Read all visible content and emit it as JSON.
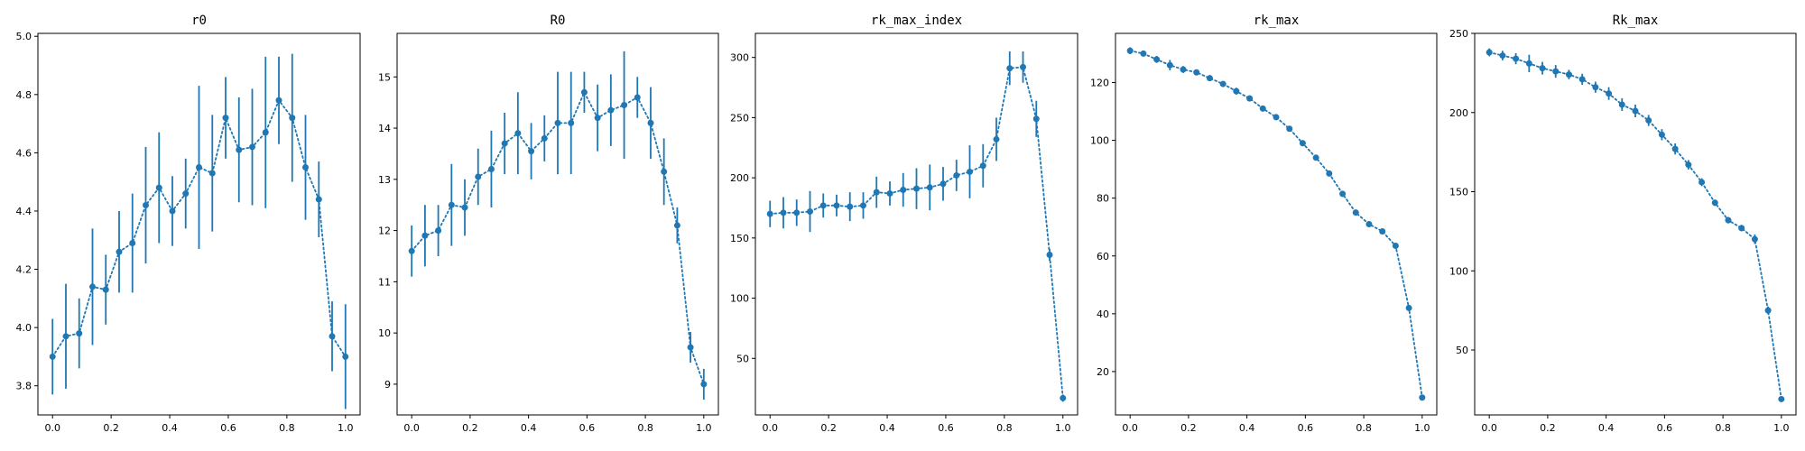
{
  "figure": {
    "background": "#ffffff",
    "series_color": "#1f77b4"
  },
  "chart_data": [
    {
      "type": "line",
      "title": "r0",
      "xlabel": "",
      "ylabel": "",
      "x": [
        0,
        0.0455,
        0.0909,
        0.1364,
        0.1818,
        0.2273,
        0.2727,
        0.3182,
        0.3636,
        0.4091,
        0.4545,
        0.5,
        0.5455,
        0.5909,
        0.6364,
        0.6818,
        0.7273,
        0.7727,
        0.8182,
        0.8636,
        0.9091,
        0.9545,
        1.0
      ],
      "values": [
        3.9,
        3.97,
        3.98,
        4.14,
        4.13,
        4.26,
        4.29,
        4.42,
        4.48,
        4.4,
        4.46,
        4.55,
        4.53,
        4.72,
        4.61,
        4.62,
        4.67,
        4.78,
        4.72,
        4.55,
        4.44,
        3.97,
        3.9
      ],
      "errors": [
        0.13,
        0.18,
        0.12,
        0.2,
        0.12,
        0.14,
        0.17,
        0.2,
        0.19,
        0.12,
        0.12,
        0.28,
        0.2,
        0.14,
        0.18,
        0.2,
        0.26,
        0.15,
        0.22,
        0.18,
        0.13,
        0.12,
        0.18
      ],
      "xlim": [
        -0.05,
        1.05
      ],
      "ylim": [
        3.7,
        5.01
      ],
      "xticks": [
        0.0,
        0.2,
        0.4,
        0.6,
        0.8,
        1.0
      ],
      "xtick_labels": [
        "0.0",
        "0.2",
        "0.4",
        "0.6",
        "0.8",
        "1.0"
      ],
      "yticks": [
        3.8,
        4.0,
        4.2,
        4.4,
        4.6,
        4.8,
        5.0
      ],
      "ytick_labels": [
        "3.8",
        "4.0",
        "4.2",
        "4.4",
        "4.6",
        "4.8",
        "5.0"
      ],
      "line_style": "dotted",
      "grid": false
    },
    {
      "type": "line",
      "title": "R0",
      "xlabel": "",
      "ylabel": "",
      "x": [
        0,
        0.0455,
        0.0909,
        0.1364,
        0.1818,
        0.2273,
        0.2727,
        0.3182,
        0.3636,
        0.4091,
        0.4545,
        0.5,
        0.5455,
        0.5909,
        0.6364,
        0.6818,
        0.7273,
        0.7727,
        0.8182,
        0.8636,
        0.9091,
        0.9545,
        1.0
      ],
      "values": [
        11.6,
        11.9,
        12.0,
        12.5,
        12.45,
        13.05,
        13.2,
        13.7,
        13.9,
        13.55,
        13.8,
        14.1,
        14.1,
        14.7,
        14.2,
        14.35,
        14.45,
        14.6,
        14.1,
        13.15,
        12.1,
        9.72,
        9.0
      ],
      "errors": [
        0.5,
        0.6,
        0.5,
        0.8,
        0.55,
        0.55,
        0.75,
        0.6,
        0.8,
        0.55,
        0.45,
        1.0,
        1.0,
        0.4,
        0.65,
        0.7,
        1.05,
        0.4,
        0.7,
        0.65,
        0.35,
        0.3,
        0.3
      ],
      "xlim": [
        -0.05,
        1.05
      ],
      "ylim": [
        8.4,
        15.85
      ],
      "xticks": [
        0.0,
        0.2,
        0.4,
        0.6,
        0.8,
        1.0
      ],
      "xtick_labels": [
        "0.0",
        "0.2",
        "0.4",
        "0.6",
        "0.8",
        "1.0"
      ],
      "yticks": [
        9,
        10,
        11,
        12,
        13,
        14,
        15
      ],
      "ytick_labels": [
        "9",
        "10",
        "11",
        "12",
        "13",
        "14",
        "15"
      ],
      "line_style": "dotted",
      "grid": false
    },
    {
      "type": "line",
      "title": "rk_max_index",
      "xlabel": "",
      "ylabel": "",
      "x": [
        0,
        0.0455,
        0.0909,
        0.1364,
        0.1818,
        0.2273,
        0.2727,
        0.3182,
        0.3636,
        0.4091,
        0.4545,
        0.5,
        0.5455,
        0.5909,
        0.6364,
        0.6818,
        0.7273,
        0.7727,
        0.8182,
        0.8636,
        0.9091,
        0.9545,
        1.0
      ],
      "values": [
        170,
        171,
        171,
        172,
        177,
        177,
        176,
        177,
        188,
        187,
        190,
        191,
        192,
        195,
        202,
        205,
        210,
        232,
        291,
        292,
        249,
        136,
        17
      ],
      "errors": [
        11,
        13,
        11,
        17,
        10,
        9,
        12,
        11,
        13,
        10,
        14,
        17,
        19,
        14,
        13,
        22,
        18,
        18,
        14,
        13,
        15,
        5,
        3
      ],
      "xlim": [
        -0.05,
        1.05
      ],
      "ylim": [
        3,
        320
      ],
      "xticks": [
        0.0,
        0.2,
        0.4,
        0.6,
        0.8,
        1.0
      ],
      "xtick_labels": [
        "0.0",
        "0.2",
        "0.4",
        "0.6",
        "0.8",
        "1.0"
      ],
      "yticks": [
        50,
        100,
        150,
        200,
        250,
        300
      ],
      "ytick_labels": [
        "50",
        "100",
        "150",
        "200",
        "250",
        "300"
      ],
      "line_style": "dotted",
      "grid": false
    },
    {
      "type": "line",
      "title": "rk_max",
      "xlabel": "",
      "ylabel": "",
      "x": [
        0,
        0.0455,
        0.0909,
        0.1364,
        0.1818,
        0.2273,
        0.2727,
        0.3182,
        0.3636,
        0.4091,
        0.4545,
        0.5,
        0.5455,
        0.5909,
        0.6364,
        0.6818,
        0.7273,
        0.7727,
        0.8182,
        0.8636,
        0.9091,
        0.9545,
        1.0
      ],
      "values": [
        131,
        130,
        128,
        126,
        124.5,
        123.5,
        121.5,
        119.5,
        117,
        114.5,
        111,
        108,
        104,
        99,
        94,
        88.5,
        81.5,
        75,
        71,
        68.5,
        63.5,
        42,
        11
      ],
      "errors": [
        1.2,
        1.0,
        1.2,
        1.8,
        1.2,
        1.0,
        1.0,
        1.0,
        1.2,
        1.0,
        1.0,
        1.0,
        1.0,
        0.8,
        1.0,
        0.8,
        1.0,
        0.8,
        0.8,
        0.8,
        0.8,
        0.8,
        0.5
      ],
      "xlim": [
        -0.05,
        1.05
      ],
      "ylim": [
        5,
        137
      ],
      "xticks": [
        0.0,
        0.2,
        0.4,
        0.6,
        0.8,
        1.0
      ],
      "xtick_labels": [
        "0.0",
        "0.2",
        "0.4",
        "0.6",
        "0.8",
        "1.0"
      ],
      "yticks": [
        20,
        40,
        60,
        80,
        100,
        120
      ],
      "ytick_labels": [
        "20",
        "40",
        "60",
        "80",
        "100",
        "120"
      ],
      "line_style": "dotted",
      "grid": false
    },
    {
      "type": "line",
      "title": "Rk_max",
      "xlabel": "",
      "ylabel": "",
      "x": [
        0,
        0.0455,
        0.0909,
        0.1364,
        0.1818,
        0.2273,
        0.2727,
        0.3182,
        0.3636,
        0.4091,
        0.4545,
        0.5,
        0.5455,
        0.5909,
        0.6364,
        0.6818,
        0.7273,
        0.7727,
        0.8182,
        0.8636,
        0.9091,
        0.9545,
        1.0
      ],
      "values": [
        238,
        236,
        234,
        231,
        228,
        226,
        224,
        221,
        216,
        212,
        205,
        201,
        195,
        186,
        177,
        167,
        156,
        143,
        132,
        127,
        120,
        75,
        19
      ],
      "errors": [
        2.5,
        3.0,
        3.5,
        5.5,
        4.0,
        4.0,
        3.0,
        3.5,
        3.5,
        4.0,
        4.0,
        4.0,
        3.5,
        3.5,
        3.5,
        3.0,
        2.5,
        2.0,
        2.0,
        2.0,
        3.0,
        2.5,
        1.5
      ],
      "xlim": [
        -0.05,
        1.05
      ],
      "ylim": [
        9,
        250
      ],
      "xticks": [
        0.0,
        0.2,
        0.4,
        0.6,
        0.8,
        1.0
      ],
      "xtick_labels": [
        "0.0",
        "0.2",
        "0.4",
        "0.6",
        "0.8",
        "1.0"
      ],
      "yticks": [
        50,
        100,
        150,
        200,
        250
      ],
      "ytick_labels": [
        "50",
        "100",
        "150",
        "200",
        "250"
      ],
      "line_style": "dotted",
      "grid": false
    }
  ]
}
